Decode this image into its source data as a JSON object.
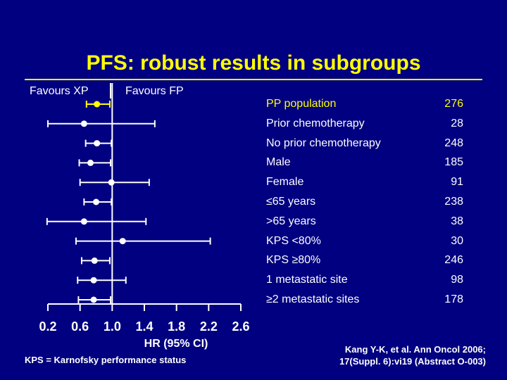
{
  "slide": {
    "title": "PFS: robust results in subgroups",
    "favours_left": "Favours XP",
    "favours_right": "Favours FP",
    "footnote": "KPS = Karnofsky performance status",
    "citation": [
      "Kang Y-K, et al. Ann Oncol 2006;",
      "17(Suppl. 6):vi19 (Abstract O-003)"
    ]
  },
  "colors": {
    "background": "#000080",
    "title": "#FFFF00",
    "highlight": "#FFFF00",
    "text": "#FFFFFF"
  },
  "chart_data": {
    "type": "forest",
    "xlabel": "HR (95% CI)",
    "xlim": [
      0.2,
      2.6
    ],
    "ticks": [
      "0.2",
      "0.6",
      "1.0",
      "1.4",
      "1.8",
      "2.2",
      "2.6"
    ],
    "reference_line": 1.0,
    "rows": [
      {
        "label": "PP population",
        "n": "276",
        "hr": 0.81,
        "low": 0.68,
        "high": 0.97,
        "highlight": true
      },
      {
        "label": "Prior chemotherapy",
        "n": "28",
        "hr": 0.65,
        "low": 0.2,
        "high": 1.53
      },
      {
        "label": "No prior chemotherapy",
        "n": "248",
        "hr": 0.81,
        "low": 0.67,
        "high": 0.99
      },
      {
        "label": "Male",
        "n": "185",
        "hr": 0.73,
        "low": 0.59,
        "high": 0.98
      },
      {
        "label": "Female",
        "n": "91",
        "hr": 0.99,
        "low": 0.6,
        "high": 1.46
      },
      {
        "label": "≤65 years",
        "n": "238",
        "hr": 0.8,
        "low": 0.65,
        "high": 0.99
      },
      {
        "label": ">65 years",
        "n": "38",
        "hr": 0.65,
        "low": 0.19,
        "high": 1.42
      },
      {
        "label": "KPS <80%",
        "n": "30",
        "hr": 1.13,
        "low": 0.55,
        "high": 2.22
      },
      {
        "label": "KPS ≥80%",
        "n": "246",
        "hr": 0.78,
        "low": 0.62,
        "high": 0.97
      },
      {
        "label": "1 metastatic site",
        "n": "98",
        "hr": 0.77,
        "low": 0.57,
        "high": 1.17
      },
      {
        "label": "≥2 metastatic sites",
        "n": "178",
        "hr": 0.77,
        "low": 0.58,
        "high": 0.98
      }
    ]
  }
}
